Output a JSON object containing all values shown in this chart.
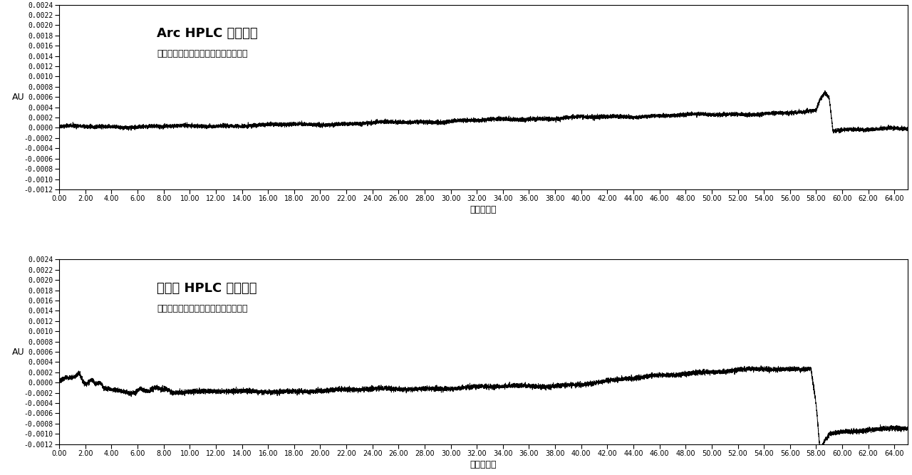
{
  "title1": "Arc HPLC システム",
  "subtitle1": "分析前ブランク試料のクロマトグラム",
  "title2": "他社製 HPLC システム",
  "subtitle2": "分析前ブランク試料のクロマトグラム",
  "xlabel": "時間（分）",
  "ylabel": "AU",
  "xmin": 0.0,
  "xmax": 65.0,
  "ymin": -0.0012,
  "ymax": 0.0024,
  "yticks": [
    -0.0012,
    -0.001,
    -0.0008,
    -0.0006,
    -0.0004,
    -0.0002,
    0.0,
    0.0002,
    0.0004,
    0.0006,
    0.0008,
    0.001,
    0.0012,
    0.0014,
    0.0016,
    0.0018,
    0.002,
    0.0022,
    0.0024
  ],
  "xticks": [
    0,
    2,
    4,
    6,
    8,
    10,
    12,
    14,
    16,
    18,
    20,
    22,
    24,
    26,
    28,
    30,
    32,
    34,
    36,
    38,
    40,
    42,
    44,
    46,
    48,
    50,
    52,
    54,
    56,
    58,
    60,
    62,
    64
  ],
  "line_color": "#000000",
  "bg_color": "#ffffff",
  "title1_fontsize": 13,
  "subtitle1_fontsize": 9,
  "tick_fontsize": 7
}
